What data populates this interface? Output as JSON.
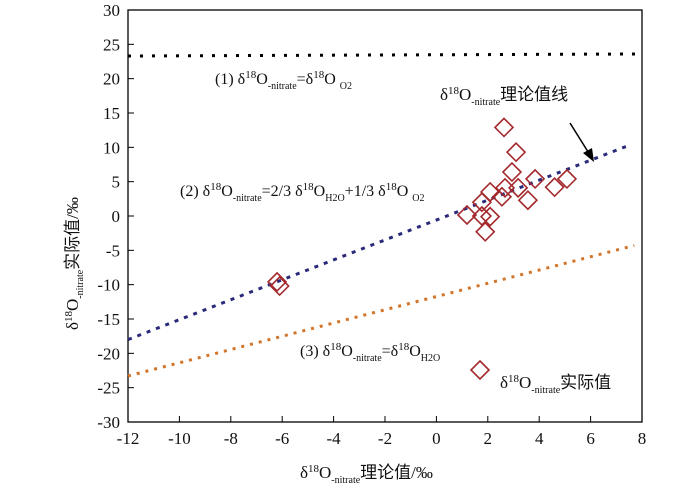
{
  "chart_data": {
    "type": "scatter",
    "xlabel": "δ18O-nitrate理论值/‰",
    "ylabel": "δ18O-nitrate实际值/‰",
    "xlim": [
      -12,
      8
    ],
    "ylim": [
      -30,
      30
    ],
    "xticks": [
      -12,
      -10,
      -8,
      -6,
      -4,
      -2,
      0,
      2,
      4,
      6,
      8
    ],
    "yticks": [
      -30,
      -25,
      -20,
      -15,
      -10,
      -5,
      0,
      5,
      10,
      15,
      20,
      25,
      30
    ],
    "grid": false,
    "lines": [
      {
        "name": "(1) δ18O-nitrate=δ18O O2",
        "x": [
          -12,
          8
        ],
        "y": [
          23.3,
          23.6
        ],
        "color": "#000000",
        "label_parts": [
          "(1)  δ",
          "18",
          "O",
          "-nitrate",
          "=δ",
          "18",
          "O ",
          "O2"
        ]
      },
      {
        "name": "(2) δ18O-nitrate=2/3δ18O H2O+1/3δ18O O2",
        "x": [
          -12,
          7.5
        ],
        "y": [
          -18,
          10.3
        ],
        "color": "#2b2a7a",
        "label_parts": [
          "(2) δ",
          "18",
          "O",
          "-nitrate",
          "=2/3 δ",
          "18",
          "O",
          "H2O",
          "+1/3 δ",
          "18",
          "O ",
          "O2"
        ]
      },
      {
        "name": "(3) δ18O-nitrate=δ18O H2O",
        "x": [
          -12,
          7.7
        ],
        "y": [
          -23.3,
          -4.3
        ],
        "color": "#d2752a",
        "label_parts": [
          "(3)  δ",
          "18",
          "O",
          "-nitrate",
          "=δ",
          "18",
          "O",
          "H2O"
        ]
      }
    ],
    "points": {
      "name": "δ18O-nitrate实际值",
      "color": "#a3282b",
      "x": [
        2.63,
        3.1,
        2.94,
        3.84,
        5.08,
        4.6,
        3.18,
        2.67,
        2.09,
        3.56,
        2.55,
        1.77,
        1.19,
        1.77,
        2.09,
        1.9,
        -6.2,
        -6.1
      ],
      "y": [
        12.9,
        9.3,
        6.4,
        5.4,
        5.4,
        4.2,
        4.1,
        4.1,
        3.5,
        2.3,
        2.8,
        2.0,
        0.15,
        0,
        -0.1,
        -2.3,
        -9.6,
        -10.2
      ]
    },
    "annotations": {
      "theory_line_label": [
        "δ",
        "18",
        "O",
        "-nitrate",
        "理论值线"
      ],
      "legend_label": [
        "δ",
        "18",
        "O",
        "-nitrate",
        "实际值"
      ]
    }
  }
}
